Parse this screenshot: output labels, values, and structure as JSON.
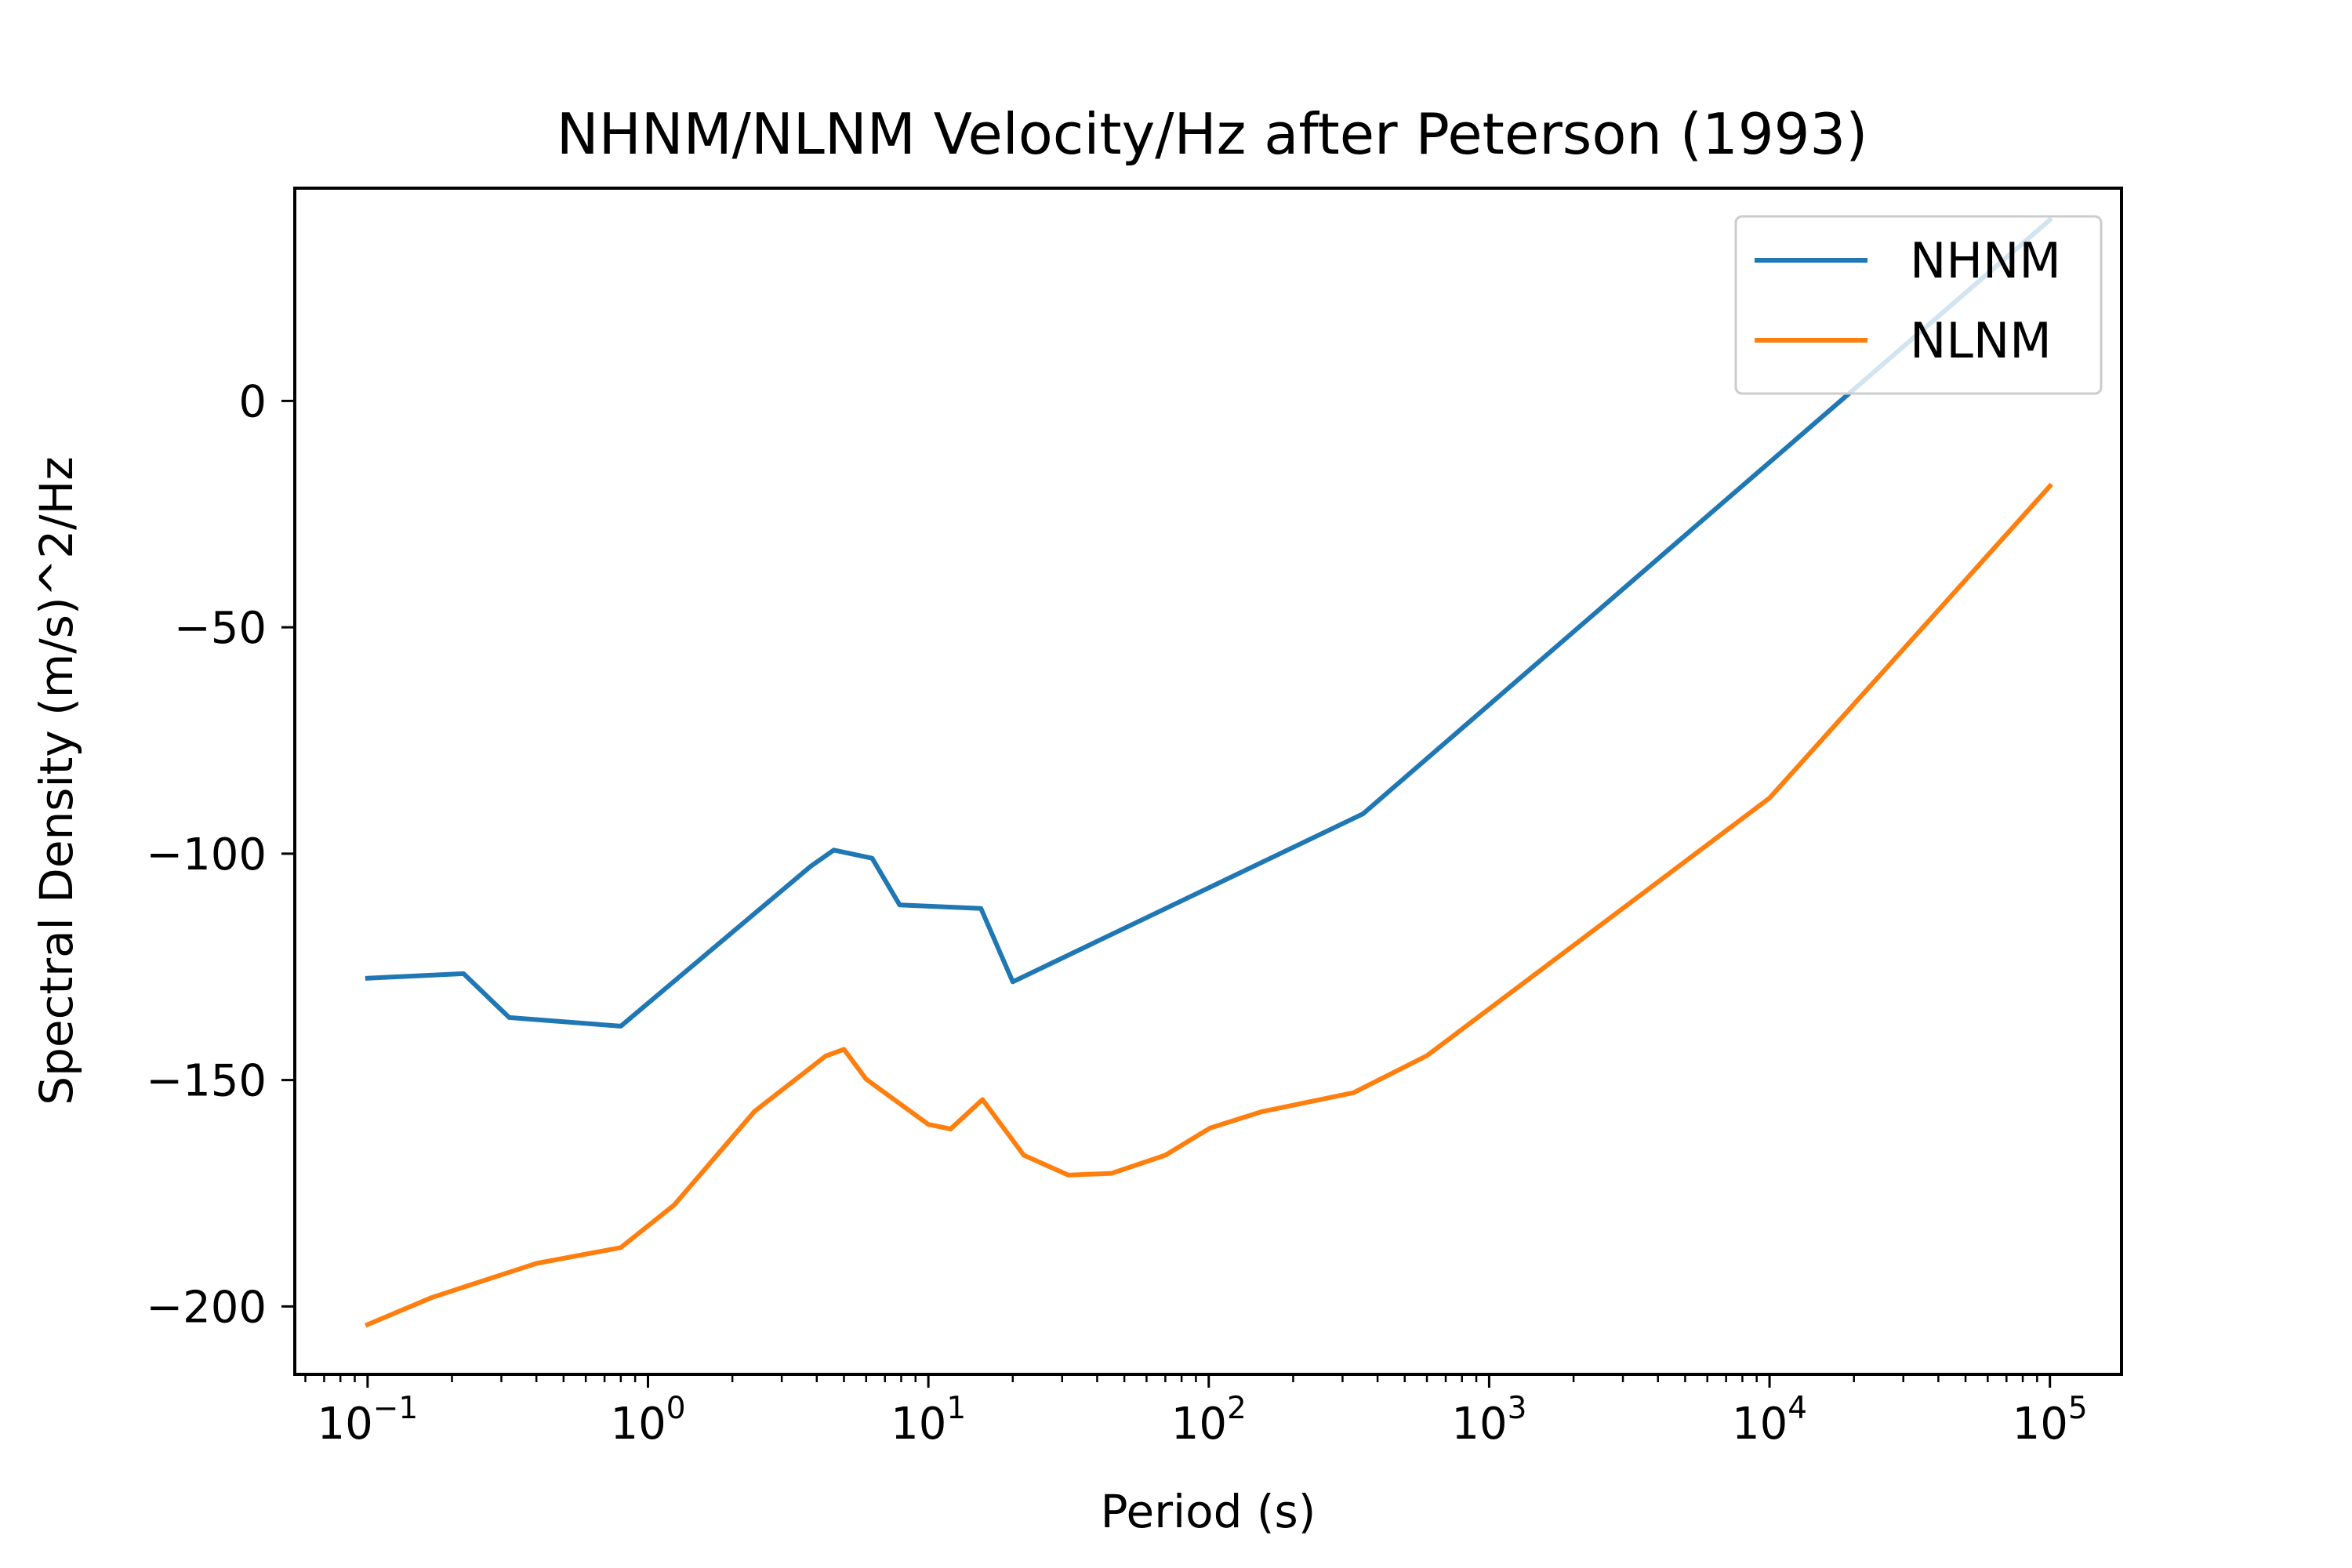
{
  "chart_data": {
    "type": "line",
    "title": "NHNM/NLNM Velocity/Hz after Peterson (1993)",
    "xlabel": "Period (s)",
    "ylabel": "Spectral Density (m/s)^2/Hz",
    "x_scale": "log",
    "xlim": [
      0.055,
      180000
    ],
    "ylim": [
      -215,
      47
    ],
    "x_tick_values": [
      0.1,
      1,
      10,
      100,
      1000,
      10000,
      100000
    ],
    "x_tick_labels": [
      {
        "base": "10",
        "exp": "−1"
      },
      {
        "base": "10",
        "exp": "0"
      },
      {
        "base": "10",
        "exp": "1"
      },
      {
        "base": "10",
        "exp": "2"
      },
      {
        "base": "10",
        "exp": "3"
      },
      {
        "base": "10",
        "exp": "4"
      },
      {
        "base": "10",
        "exp": "5"
      }
    ],
    "y_ticks": [
      0,
      -50,
      -100,
      -150,
      -200
    ],
    "y_tick_labels": [
      "0",
      "−50",
      "−100",
      "−150",
      "−200"
    ],
    "grid": false,
    "legend_position": "top-right",
    "series": [
      {
        "name": "NHNM",
        "color": "#1f77b4",
        "points": [
          [
            0.1,
            -127.5
          ],
          [
            0.22,
            -126.5
          ],
          [
            0.32,
            -136.2
          ],
          [
            0.8,
            -138.1
          ],
          [
            3.8,
            -102.8
          ],
          [
            4.6,
            -99.2
          ],
          [
            6.3,
            -101.0
          ],
          [
            7.9,
            -111.3
          ],
          [
            15.4,
            -112.1
          ],
          [
            20.0,
            -128.3
          ],
          [
            354.8,
            -91.2
          ],
          [
            100000,
            40.0
          ]
        ]
      },
      {
        "name": "NLNM",
        "color": "#ff7f0e",
        "points": [
          [
            0.1,
            -204.0
          ],
          [
            0.17,
            -198.0
          ],
          [
            0.4,
            -190.5
          ],
          [
            0.8,
            -187.0
          ],
          [
            1.24,
            -177.6
          ],
          [
            2.4,
            -156.9
          ],
          [
            4.3,
            -144.7
          ],
          [
            5.0,
            -143.2
          ],
          [
            6.0,
            -149.8
          ],
          [
            10.0,
            -159.8
          ],
          [
            12.0,
            -160.8
          ],
          [
            15.6,
            -154.3
          ],
          [
            21.9,
            -166.6
          ],
          [
            31.6,
            -171.0
          ],
          [
            45.0,
            -170.6
          ],
          [
            70.0,
            -166.6
          ],
          [
            101.0,
            -160.6
          ],
          [
            154.0,
            -157.0
          ],
          [
            328.0,
            -152.8
          ],
          [
            600.0,
            -144.6
          ],
          [
            10000,
            -87.7
          ],
          [
            100000,
            -18.8
          ]
        ]
      }
    ]
  }
}
